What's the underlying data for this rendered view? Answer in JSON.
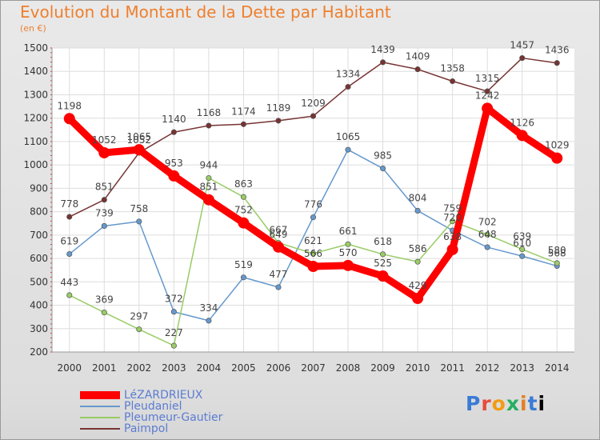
{
  "chart_data": {
    "type": "line",
    "title": "Evolution du Montant de la Dette par Habitant",
    "subtitle": "(en €)",
    "x": [
      2000,
      2001,
      2002,
      2003,
      2004,
      2005,
      2006,
      2007,
      2008,
      2009,
      2010,
      2011,
      2012,
      2013,
      2014
    ],
    "ylim": [
      200,
      1500
    ],
    "yticks": [
      200,
      300,
      400,
      500,
      600,
      700,
      800,
      900,
      1000,
      1100,
      1200,
      1300,
      1400,
      1500
    ],
    "grid": true,
    "legend_position": "bottom-left",
    "series": [
      {
        "name": "LéZARDRIEUX",
        "color": "#ff0000",
        "values": [
          1198,
          1052,
          1065,
          953,
          851,
          752,
          649,
          566,
          570,
          525,
          429,
          638,
          1242,
          1126,
          1029
        ]
      },
      {
        "name": "Pleudaniel",
        "color": "#6699cc",
        "values": [
          619,
          739,
          758,
          372,
          334,
          519,
          477,
          776,
          1065,
          985,
          804,
          720,
          648,
          610,
          568
        ]
      },
      {
        "name": "Pleumeur-Gautier",
        "color": "#99cc66",
        "values": [
          443,
          369,
          297,
          227,
          944,
          863,
          667,
          621,
          661,
          618,
          586,
          759,
          702,
          639,
          580
        ]
      },
      {
        "name": "Paimpol",
        "color": "#773333",
        "values": [
          778,
          851,
          1052,
          1140,
          1168,
          1174,
          1189,
          1209,
          1334,
          1439,
          1409,
          1358,
          1315,
          1457,
          1436
        ]
      }
    ]
  },
  "branding": {
    "logo_letters": [
      "P",
      "r",
      "o",
      "x",
      "i",
      "t",
      "i"
    ]
  }
}
